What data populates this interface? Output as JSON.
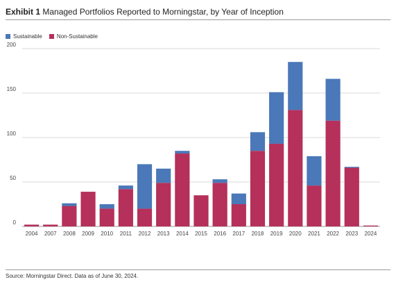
{
  "header": {
    "exhibit_label": "Exhibit 1",
    "title": "Managed Portfolios Reported to Morningstar, by Year of Inception"
  },
  "colors": {
    "sustainable": "#4a78b8",
    "non_sustainable": "#b5305a",
    "grid": "#d9d9d9",
    "axis_text": "#444444"
  },
  "source": "Source: Morningstar Direct. Data as of June 30, 2024.",
  "chart_data": {
    "type": "bar",
    "stacked": true,
    "title": "Managed Portfolios Reported to Morningstar, by Year of Inception",
    "xlabel": "",
    "ylabel": "",
    "ylim": [
      0,
      200
    ],
    "yticks": [
      0,
      50,
      100,
      150,
      200
    ],
    "grid": true,
    "legend_position": "top-left",
    "categories": [
      "2004",
      "2007",
      "2008",
      "2009",
      "2010",
      "2011",
      "2012",
      "2013",
      "2014",
      "2015",
      "2016",
      "2017",
      "2018",
      "2019",
      "2020",
      "2021",
      "2022",
      "2023",
      "2024"
    ],
    "series": [
      {
        "name": "Non-Sustainable",
        "color": "#b5305a",
        "values": [
          2,
          2,
          23,
          39,
          20,
          42,
          20,
          49,
          82,
          35,
          49,
          25,
          85,
          93,
          131,
          46,
          119,
          66,
          1
        ]
      },
      {
        "name": "Sustainable",
        "color": "#4a78b8",
        "values": [
          0,
          0,
          3,
          0,
          5,
          4,
          50,
          16,
          3,
          0,
          4,
          12,
          21,
          58,
          54,
          33,
          47,
          1,
          0
        ]
      }
    ]
  }
}
